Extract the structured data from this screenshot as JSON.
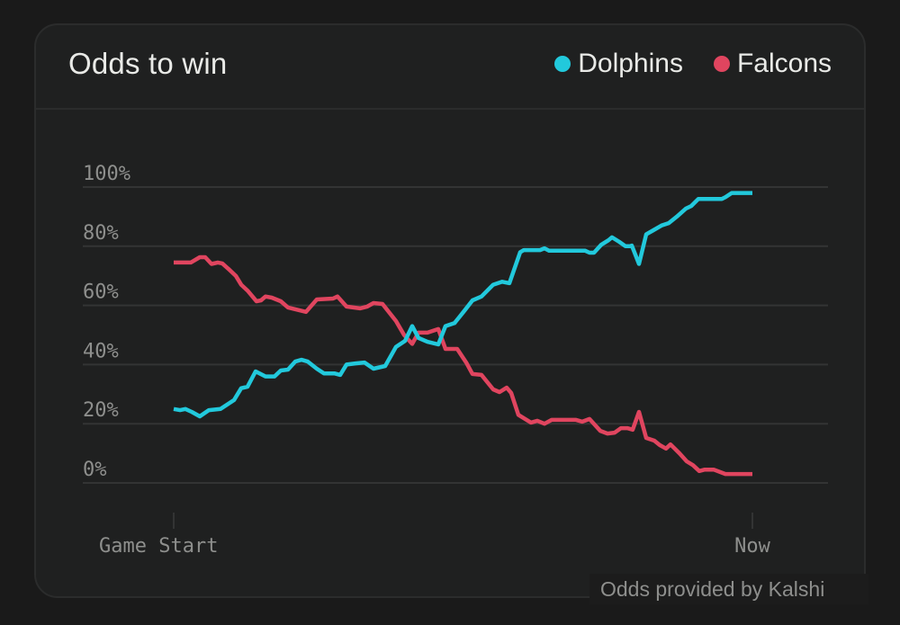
{
  "header": {
    "title": "Odds to win"
  },
  "legend": [
    {
      "label": "Dolphins",
      "color": "#22c9dc"
    },
    {
      "label": "Falcons",
      "color": "#e0455f"
    }
  ],
  "footer": {
    "credit": "Odds provided by Kalshi"
  },
  "chart_data": {
    "type": "line",
    "title": "Odds to win",
    "xlabel": "",
    "ylabel": "",
    "ylim": [
      0,
      100
    ],
    "yticks": [
      "0%",
      "20%",
      "40%",
      "60%",
      "80%",
      "100%"
    ],
    "xticks": [
      "Game Start",
      "Now"
    ],
    "grid": true,
    "legend_position": "top-right",
    "x_domain": [
      0,
      643
    ],
    "series": [
      {
        "name": "Dolphins",
        "color": "#22c9dc",
        "points": [
          [
            0,
            25
          ],
          [
            7,
            24.6
          ],
          [
            13,
            25
          ],
          [
            20,
            24
          ],
          [
            29,
            22.5
          ],
          [
            39,
            24.6
          ],
          [
            52,
            25
          ],
          [
            67,
            28
          ],
          [
            75,
            32
          ],
          [
            82,
            32.5
          ],
          [
            91,
            37.7
          ],
          [
            102,
            36
          ],
          [
            112,
            36
          ],
          [
            119,
            38
          ],
          [
            127,
            38.3
          ],
          [
            135,
            41
          ],
          [
            142,
            41.6
          ],
          [
            149,
            41
          ],
          [
            159,
            38.6
          ],
          [
            167,
            37
          ],
          [
            179,
            37
          ],
          [
            185,
            36.5
          ],
          [
            192,
            40
          ],
          [
            202,
            40.4
          ],
          [
            212,
            40.7
          ],
          [
            222,
            38.6
          ],
          [
            235,
            39.5
          ],
          [
            247,
            46
          ],
          [
            257,
            48
          ],
          [
            265,
            53
          ],
          [
            272,
            49
          ],
          [
            282,
            47.7
          ],
          [
            294,
            46.8
          ],
          [
            302,
            53
          ],
          [
            312,
            54
          ],
          [
            322,
            57.8
          ],
          [
            332,
            61.7
          ],
          [
            342,
            63
          ],
          [
            355,
            67
          ],
          [
            365,
            68
          ],
          [
            373,
            67.5
          ],
          [
            385,
            78
          ],
          [
            389,
            78.7
          ],
          [
            407,
            78.7
          ],
          [
            412,
            79.3
          ],
          [
            417,
            78.5
          ],
          [
            457,
            78.5
          ],
          [
            462,
            77.8
          ],
          [
            467,
            77.8
          ],
          [
            475,
            80.5
          ],
          [
            483,
            82
          ],
          [
            487,
            83
          ],
          [
            495,
            81.5
          ],
          [
            502,
            80
          ],
          [
            507,
            80
          ],
          [
            509,
            80.2
          ],
          [
            517,
            74
          ],
          [
            525,
            84
          ],
          [
            533,
            85.4
          ],
          [
            542,
            87
          ],
          [
            550,
            87.8
          ],
          [
            559,
            90
          ],
          [
            569,
            92.7
          ],
          [
            575,
            93.6
          ],
          [
            583,
            96
          ],
          [
            609,
            96
          ],
          [
            613,
            96.6
          ],
          [
            620,
            98
          ],
          [
            643,
            98
          ]
        ]
      },
      {
        "name": "Falcons",
        "color": "#e0455f",
        "points": [
          [
            0,
            74.5
          ],
          [
            19,
            74.5
          ],
          [
            29,
            76.3
          ],
          [
            35,
            76.3
          ],
          [
            42,
            74
          ],
          [
            49,
            74.5
          ],
          [
            54,
            74.2
          ],
          [
            62,
            72
          ],
          [
            69,
            70
          ],
          [
            75,
            67
          ],
          [
            82,
            65
          ],
          [
            92,
            61.4
          ],
          [
            97,
            61.7
          ],
          [
            102,
            63
          ],
          [
            109,
            62.6
          ],
          [
            119,
            61.4
          ],
          [
            127,
            59.3
          ],
          [
            147,
            57.8
          ],
          [
            159,
            62
          ],
          [
            177,
            62.3
          ],
          [
            182,
            63
          ],
          [
            192,
            59.6
          ],
          [
            207,
            59
          ],
          [
            215,
            59.6
          ],
          [
            222,
            60.8
          ],
          [
            232,
            60.5
          ],
          [
            247,
            54.7
          ],
          [
            256,
            50
          ],
          [
            265,
            47
          ],
          [
            272,
            50.8
          ],
          [
            282,
            50.8
          ],
          [
            294,
            52
          ],
          [
            302,
            45.3
          ],
          [
            315,
            45.3
          ],
          [
            325,
            40.7
          ],
          [
            332,
            36.8
          ],
          [
            342,
            36.5
          ],
          [
            355,
            31.6
          ],
          [
            362,
            30.7
          ],
          [
            370,
            32.2
          ],
          [
            375,
            30.4
          ],
          [
            383,
            23
          ],
          [
            397,
            20.4
          ],
          [
            404,
            21
          ],
          [
            412,
            20
          ],
          [
            420,
            21.3
          ],
          [
            447,
            21.3
          ],
          [
            454,
            20.7
          ],
          [
            462,
            21.6
          ],
          [
            474,
            17.6
          ],
          [
            482,
            16.7
          ],
          [
            490,
            17
          ],
          [
            497,
            18.5
          ],
          [
            504,
            18.5
          ],
          [
            510,
            18
          ],
          [
            517,
            24
          ],
          [
            525,
            15.2
          ],
          [
            534,
            14.3
          ],
          [
            540,
            12.8
          ],
          [
            547,
            11.6
          ],
          [
            552,
            13
          ],
          [
            562,
            10
          ],
          [
            570,
            7.3
          ],
          [
            577,
            6
          ],
          [
            584,
            4
          ],
          [
            590,
            4.5
          ],
          [
            600,
            4.5
          ],
          [
            613,
            3
          ],
          [
            643,
            3
          ]
        ]
      }
    ]
  }
}
